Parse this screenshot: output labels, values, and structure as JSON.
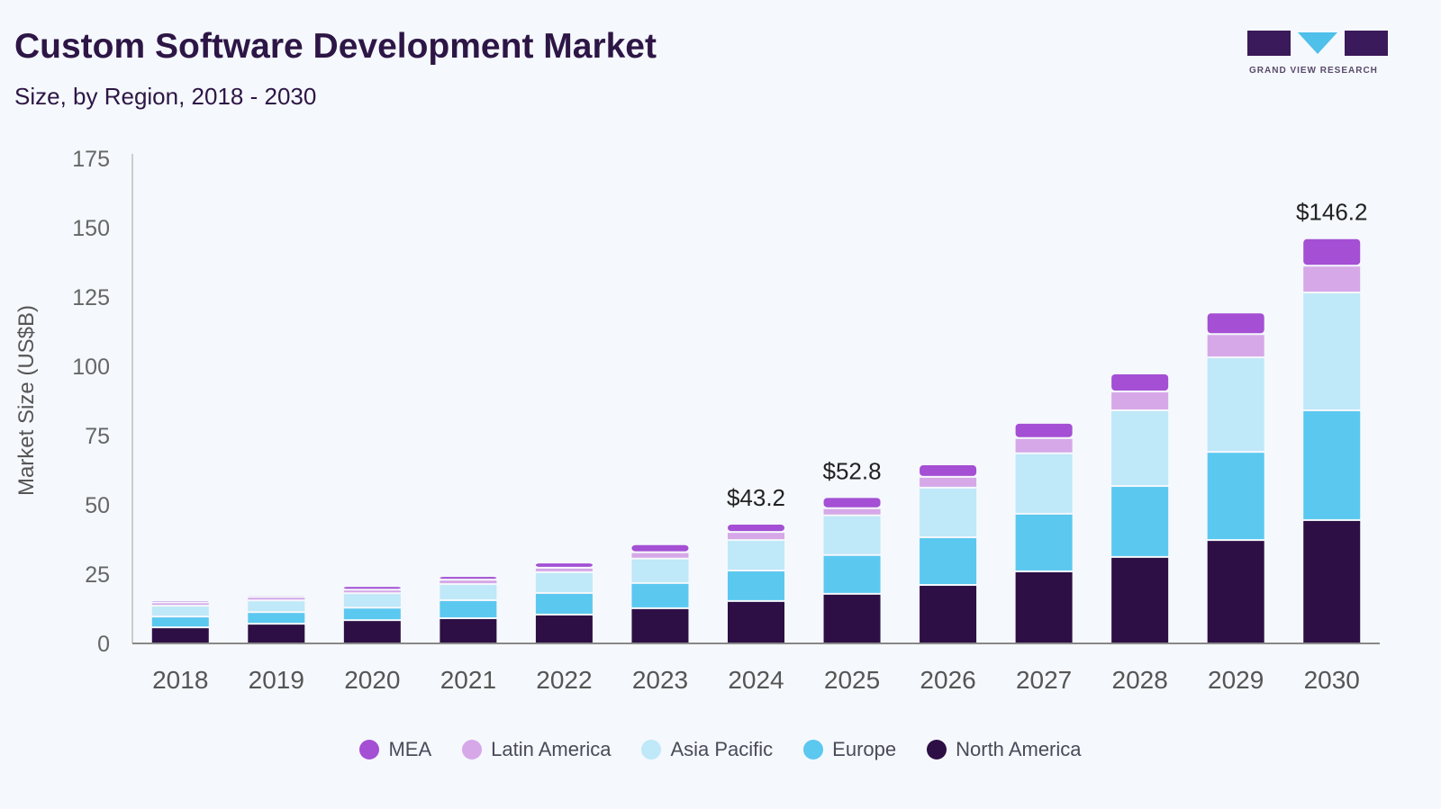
{
  "header": {
    "title": "Custom Software Development Market",
    "subtitle": "Size, by Region, 2018 - 2030",
    "logo_text": "GRAND VIEW RESEARCH"
  },
  "chart_data": {
    "type": "bar",
    "stacked": true,
    "title": "Custom Software Development Market",
    "subtitle": "Size, by Region, 2018 - 2030",
    "xlabel": "",
    "ylabel": "Market Size (US$B)",
    "ylim": [
      0,
      175
    ],
    "yticks": [
      0,
      25,
      50,
      75,
      100,
      125,
      150,
      175
    ],
    "grid": false,
    "legend": "bottom",
    "categories": [
      "2018",
      "2019",
      "2020",
      "2021",
      "2022",
      "2023",
      "2024",
      "2025",
      "2026",
      "2027",
      "2028",
      "2029",
      "2030"
    ],
    "series": [
      {
        "name": "North America",
        "color": "#2d0f45",
        "values": [
          5.8,
          7.1,
          8.4,
          9.1,
          10.4,
          12.7,
          15.3,
          17.9,
          21.1,
          26.0,
          31.2,
          37.3,
          44.5
        ]
      },
      {
        "name": "Europe",
        "color": "#5bc8f0",
        "values": [
          3.9,
          4.2,
          4.5,
          6.5,
          7.8,
          9.1,
          11.0,
          14.0,
          17.2,
          20.8,
          25.6,
          31.8,
          39.6
        ]
      },
      {
        "name": "Asia Pacific",
        "color": "#bfe8f8",
        "values": [
          3.9,
          4.2,
          5.2,
          5.8,
          7.5,
          8.8,
          11.0,
          14.3,
          17.9,
          21.8,
          27.3,
          34.1,
          42.5
        ]
      },
      {
        "name": "Latin America",
        "color": "#d6a8e8",
        "values": [
          1.2,
          1.3,
          1.3,
          1.6,
          1.6,
          2.3,
          2.9,
          2.6,
          3.9,
          5.5,
          6.8,
          8.4,
          9.7
        ]
      },
      {
        "name": "MEA",
        "color": "#a44fd4",
        "values": [
          0.8,
          0.7,
          1.3,
          1.3,
          1.9,
          2.9,
          3.0,
          4.0,
          4.5,
          5.5,
          6.5,
          7.8,
          9.9
        ]
      }
    ],
    "annotations": [
      {
        "category": "2024",
        "label": "$43.2"
      },
      {
        "category": "2025",
        "label": "$52.8"
      },
      {
        "category": "2030",
        "label": "$146.2"
      }
    ],
    "legend_order": [
      "MEA",
      "Latin America",
      "Asia Pacific",
      "Europe",
      "North America"
    ]
  }
}
